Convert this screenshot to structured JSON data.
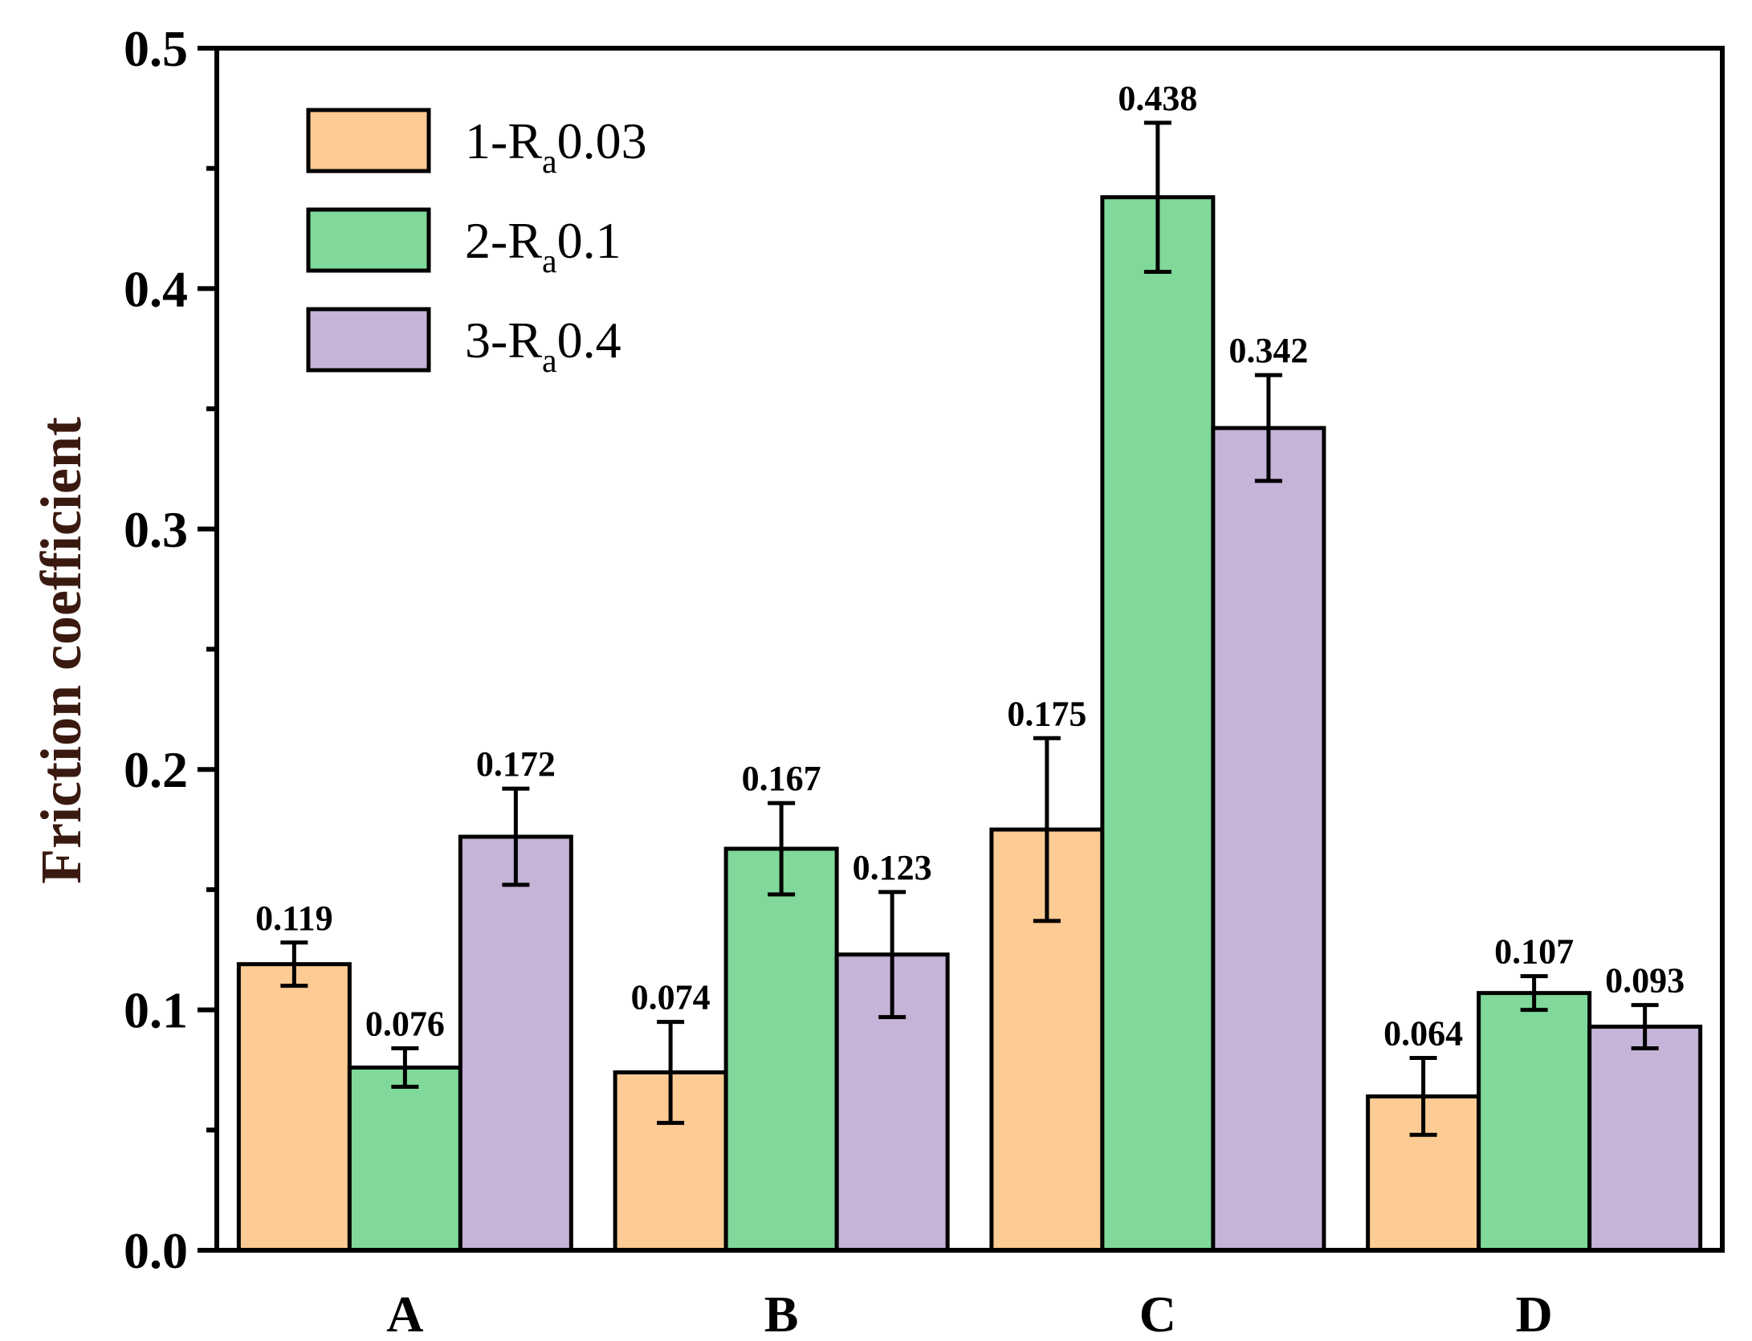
{
  "chart_data": {
    "type": "bar",
    "title": "",
    "xlabel": "",
    "ylabel": "Friction coefficient",
    "ylim": [
      0,
      0.5
    ],
    "yticks": [
      "0.0",
      "0.1",
      "0.2",
      "0.3",
      "0.4",
      "0.5"
    ],
    "ytick_values": [
      0,
      0.1,
      0.2,
      0.3,
      0.4,
      0.5
    ],
    "categories": [
      "A",
      "B",
      "C",
      "D"
    ],
    "legend_position": "top-left",
    "series": [
      {
        "name": "1-Ra0.03",
        "legend_prefix": "1-R",
        "legend_sub": "a",
        "legend_suffix": "0.03",
        "color": "#FDCB94",
        "values": [
          0.119,
          0.074,
          0.175,
          0.064
        ],
        "labels": [
          "0.119",
          "0.074",
          "0.175",
          "0.064"
        ],
        "errors": [
          0.009,
          0.021,
          0.038,
          0.016
        ]
      },
      {
        "name": "2-Ra0.1",
        "legend_prefix": "2-R",
        "legend_sub": "a",
        "legend_suffix": "0.1",
        "color": "#80D99A",
        "values": [
          0.076,
          0.167,
          0.438,
          0.107
        ],
        "labels": [
          "0.076",
          "0.167",
          "0.438",
          "0.107"
        ],
        "errors": [
          0.008,
          0.019,
          0.031,
          0.007
        ]
      },
      {
        "name": "3-Ra0.4",
        "legend_prefix": "3-R",
        "legend_sub": "a",
        "legend_suffix": "0.4",
        "color": "#C6B3D8",
        "values": [
          0.172,
          0.123,
          0.342,
          0.093
        ],
        "labels": [
          "0.172",
          "0.123",
          "0.342",
          "0.093"
        ],
        "errors": [
          0.02,
          0.026,
          0.022,
          0.009
        ]
      }
    ]
  }
}
